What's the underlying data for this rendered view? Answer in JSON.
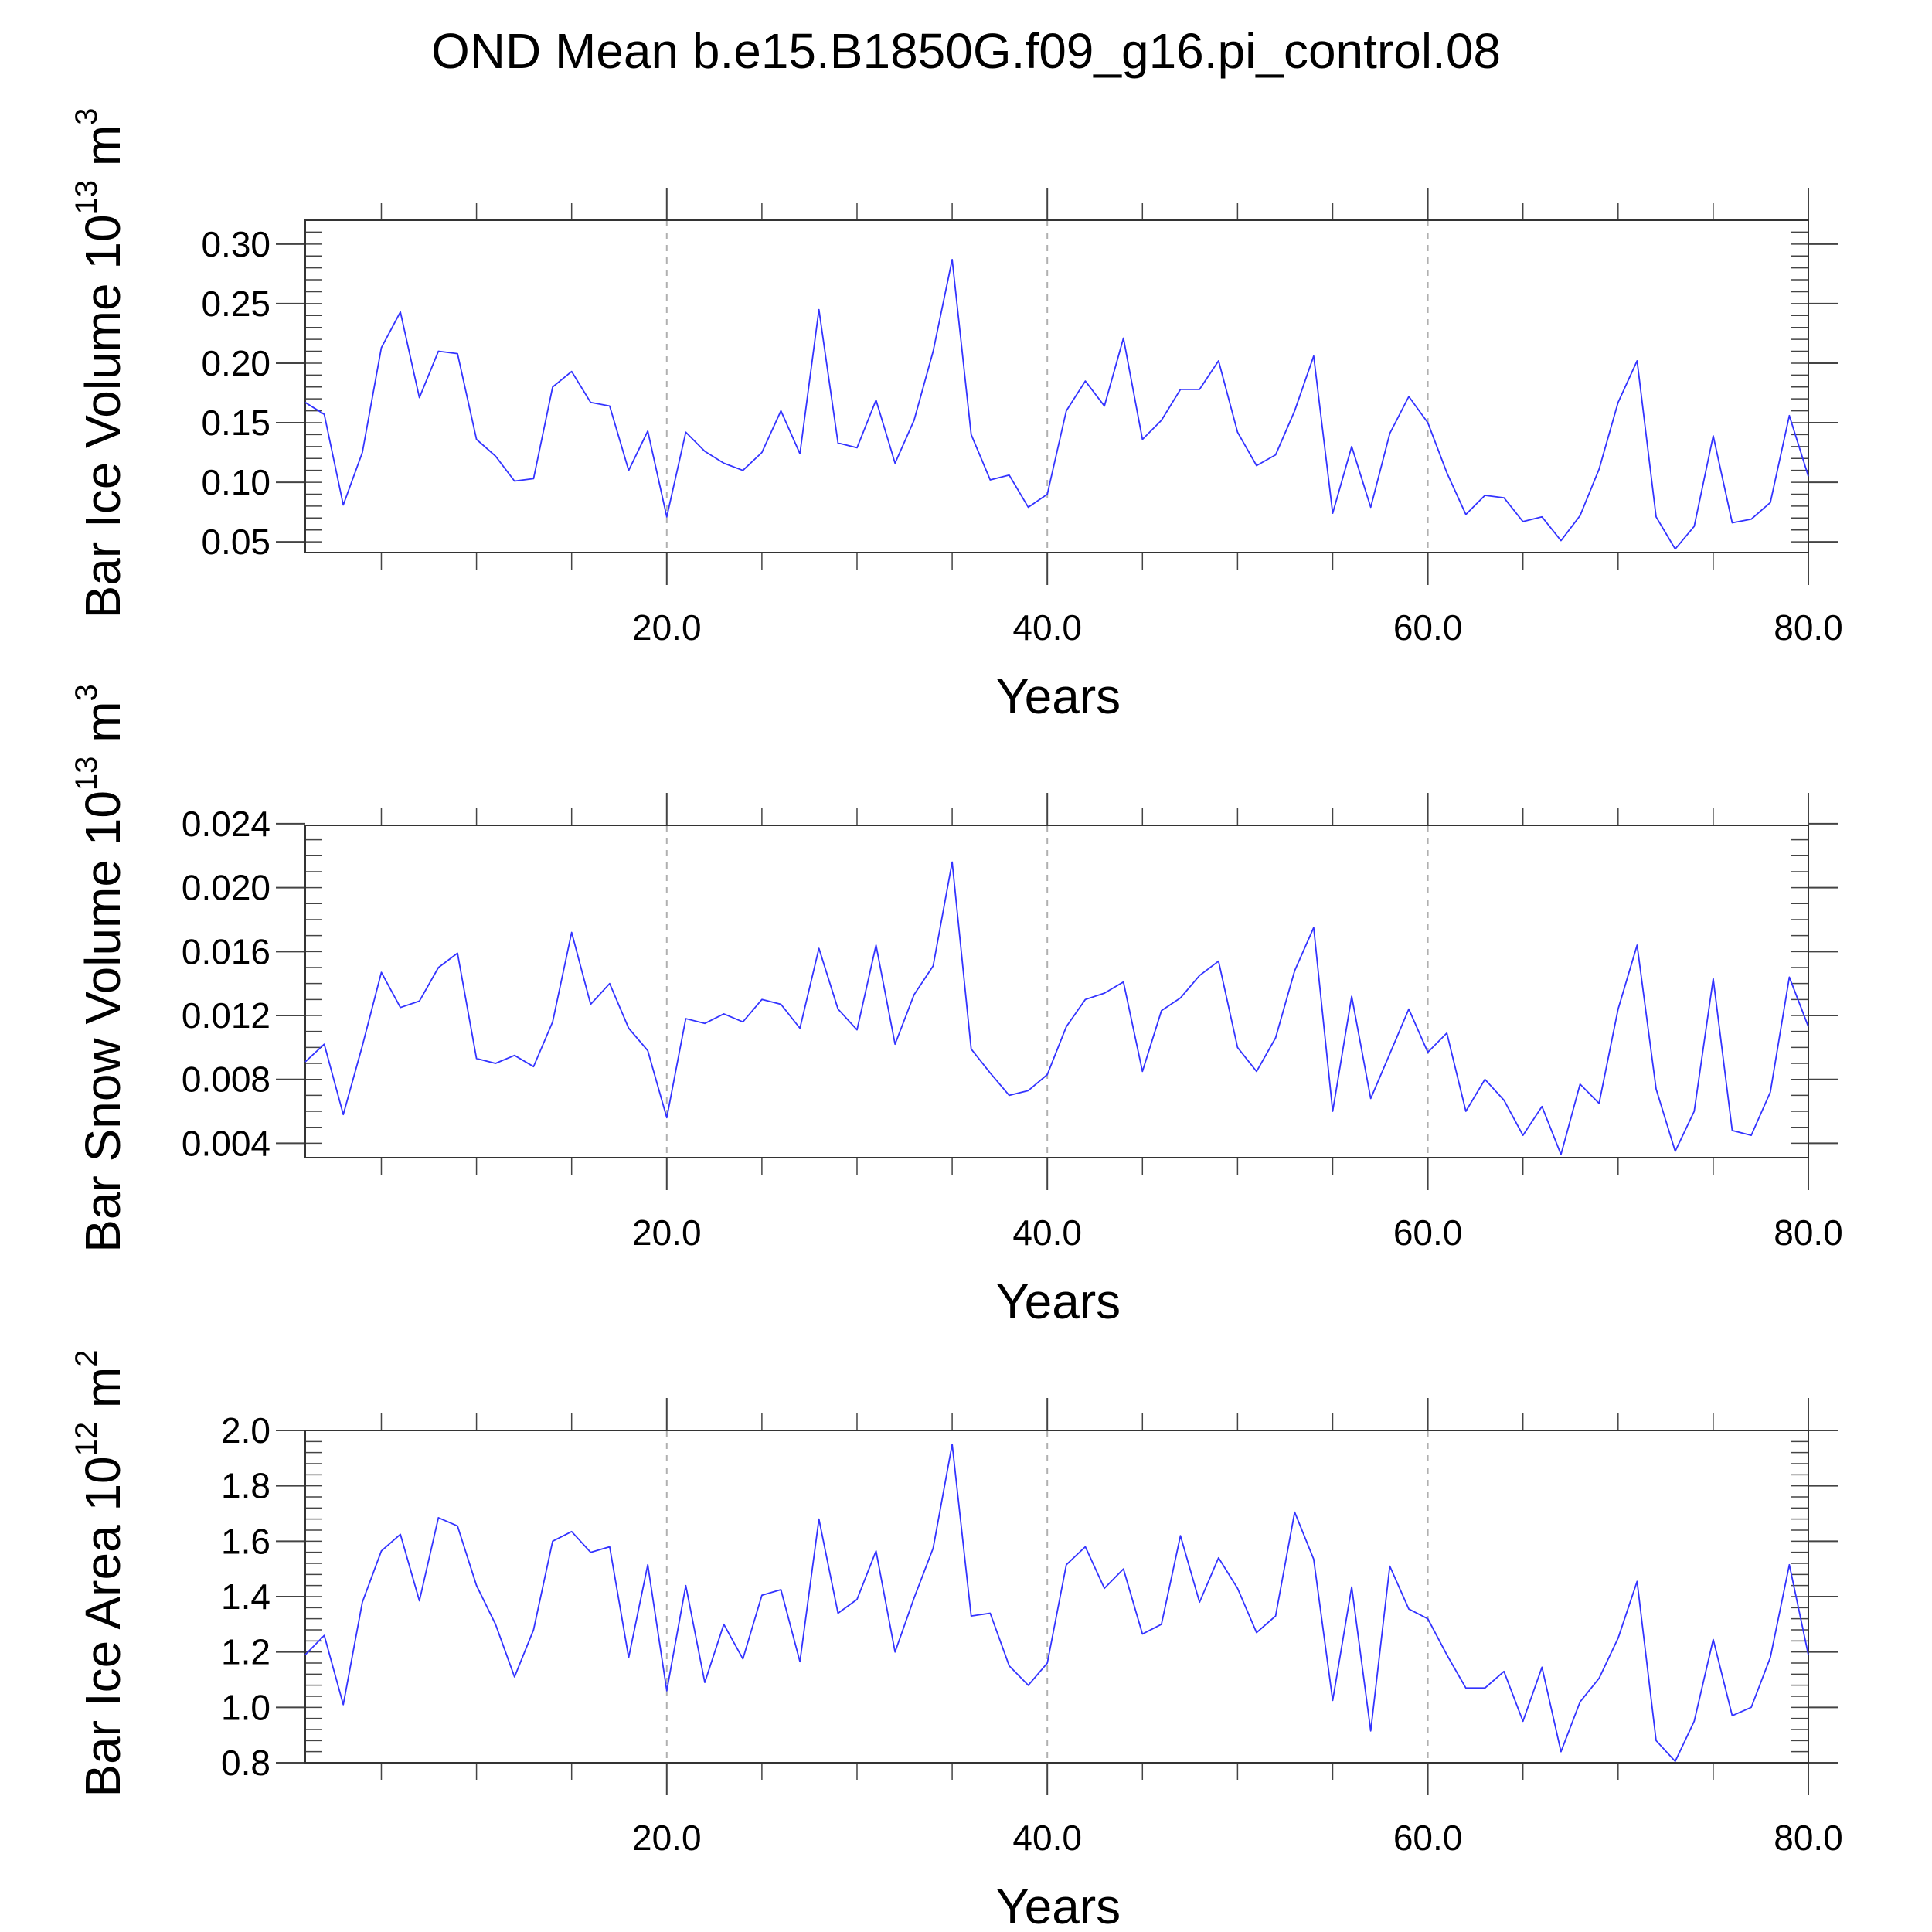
{
  "title": "OND Mean b.e15.B1850G.f09_g16.pi_control.08",
  "chart_data": [
    {
      "type": "line",
      "ylabel": {
        "base": "Bar Ice Volume 10",
        "exp1": "13",
        "unit": " m",
        "exp2": "3"
      },
      "xlabel": "Years",
      "xlim": [
        1,
        80
      ],
      "ylim": [
        0.041,
        0.32
      ],
      "xticks": [
        20,
        40,
        60,
        80
      ],
      "xtick_labels": [
        "20.0",
        "40.0",
        "60.0",
        "80.0"
      ],
      "yticks": [
        0.05,
        0.1,
        0.15,
        0.2,
        0.25,
        0.3
      ],
      "ytick_labels": [
        "0.05",
        "0.10",
        "0.15",
        "0.20",
        "0.25",
        "0.30"
      ],
      "y_minor_step": 0.01,
      "grid": "vertical dashed at major x ticks",
      "series": [
        {
          "name": "Bar Ice Volume",
          "color": "#3333ff",
          "values": [
            0.167,
            0.157,
            0.081,
            0.125,
            0.213,
            0.243,
            0.171,
            0.21,
            0.208,
            0.136,
            0.122,
            0.101,
            0.103,
            0.18,
            0.193,
            0.167,
            0.164,
            0.11,
            0.143,
            0.071,
            0.142,
            0.126,
            0.116,
            0.11,
            0.125,
            0.16,
            0.124,
            0.245,
            0.133,
            0.129,
            0.169,
            0.116,
            0.152,
            0.21,
            0.287,
            0.14,
            0.102,
            0.106,
            0.079,
            0.09,
            0.16,
            0.185,
            0.164,
            0.221,
            0.136,
            0.152,
            0.178,
            0.178,
            0.202,
            0.142,
            0.114,
            0.123,
            0.16,
            0.206,
            0.074,
            0.13,
            0.079,
            0.141,
            0.172,
            0.15,
            0.108,
            0.073,
            0.089,
            0.087,
            0.067,
            0.071,
            0.051,
            0.072,
            0.111,
            0.167,
            0.202,
            0.071,
            0.044,
            0.063,
            0.139,
            0.066,
            0.069,
            0.083,
            0.156,
            0.105
          ]
        }
      ]
    },
    {
      "type": "line",
      "ylabel": {
        "base": "Bar Snow Volume 10",
        "exp1": "13",
        "unit": " m",
        "exp2": "3"
      },
      "xlabel": "Years",
      "xlim": [
        1,
        80
      ],
      "ylim": [
        0.0031,
        0.0239
      ],
      "xticks": [
        20,
        40,
        60,
        80
      ],
      "xtick_labels": [
        "20.0",
        "40.0",
        "60.0",
        "80.0"
      ],
      "yticks": [
        0.004,
        0.008,
        0.012,
        0.016,
        0.02,
        0.024
      ],
      "ytick_labels": [
        "0.004",
        "0.008",
        "0.012",
        "0.016",
        "0.020",
        "0.024"
      ],
      "y_minor_step": 0.001,
      "grid": "vertical dashed at major x ticks",
      "series": [
        {
          "name": "Bar Snow Volume",
          "color": "#3333ff",
          "values": [
            0.0091,
            0.0102,
            0.0058,
            0.0101,
            0.0147,
            0.0125,
            0.0129,
            0.015,
            0.0159,
            0.0093,
            0.009,
            0.0095,
            0.0088,
            0.0116,
            0.0172,
            0.0127,
            0.014,
            0.0112,
            0.0098,
            0.0056,
            0.0118,
            0.0115,
            0.0121,
            0.0116,
            0.013,
            0.0127,
            0.0112,
            0.0162,
            0.0124,
            0.0111,
            0.0164,
            0.0102,
            0.0133,
            0.0151,
            0.0216,
            0.0099,
            0.0084,
            0.007,
            0.0073,
            0.0083,
            0.0113,
            0.013,
            0.0134,
            0.0141,
            0.0085,
            0.0123,
            0.0131,
            0.0145,
            0.0154,
            0.01,
            0.0085,
            0.0106,
            0.0148,
            0.0175,
            0.006,
            0.0132,
            0.0068,
            0.0096,
            0.0124,
            0.0097,
            0.0109,
            0.006,
            0.008,
            0.0067,
            0.0045,
            0.0063,
            0.0033,
            0.0077,
            0.0065,
            0.0124,
            0.0164,
            0.0074,
            0.0035,
            0.006,
            0.0143,
            0.0048,
            0.0045,
            0.0072,
            0.0144,
            0.0113
          ]
        }
      ]
    },
    {
      "type": "line",
      "ylabel": {
        "base": "Bar Ice Area 10",
        "exp1": "12",
        "unit": " m",
        "exp2": "2"
      },
      "xlabel": "Years",
      "xlim": [
        1,
        80
      ],
      "ylim": [
        0.8,
        2.0
      ],
      "xticks": [
        20,
        40,
        60,
        80
      ],
      "xtick_labels": [
        "20.0",
        "40.0",
        "60.0",
        "80.0"
      ],
      "yticks": [
        0.8,
        1.0,
        1.2,
        1.4,
        1.6,
        1.8,
        2.0
      ],
      "ytick_labels": [
        "0.8",
        "1.0",
        "1.2",
        "1.4",
        "1.6",
        "1.8",
        "2.0"
      ],
      "y_minor_step": 0.04,
      "grid": "vertical dashed at major x ticks",
      "series": [
        {
          "name": "Bar Ice Area",
          "color": "#3333ff",
          "values": [
            1.19,
            1.26,
            1.01,
            1.38,
            1.565,
            1.625,
            1.385,
            1.685,
            1.655,
            1.44,
            1.3,
            1.11,
            1.28,
            1.6,
            1.635,
            1.56,
            1.58,
            1.18,
            1.515,
            1.06,
            1.44,
            1.09,
            1.3,
            1.175,
            1.405,
            1.425,
            1.165,
            1.68,
            1.34,
            1.39,
            1.565,
            1.2,
            1.395,
            1.575,
            1.95,
            1.33,
            1.34,
            1.15,
            1.08,
            1.16,
            1.515,
            1.58,
            1.43,
            1.5,
            1.265,
            1.3,
            1.62,
            1.38,
            1.54,
            1.43,
            1.27,
            1.33,
            1.705,
            1.535,
            1.025,
            1.435,
            0.915,
            1.51,
            1.355,
            1.32,
            1.19,
            1.07,
            1.07,
            1.13,
            0.95,
            1.145,
            0.84,
            1.02,
            1.105,
            1.25,
            1.455,
            0.88,
            0.805,
            0.95,
            1.245,
            0.97,
            1.0,
            1.18,
            1.515,
            1.19
          ]
        }
      ]
    }
  ]
}
